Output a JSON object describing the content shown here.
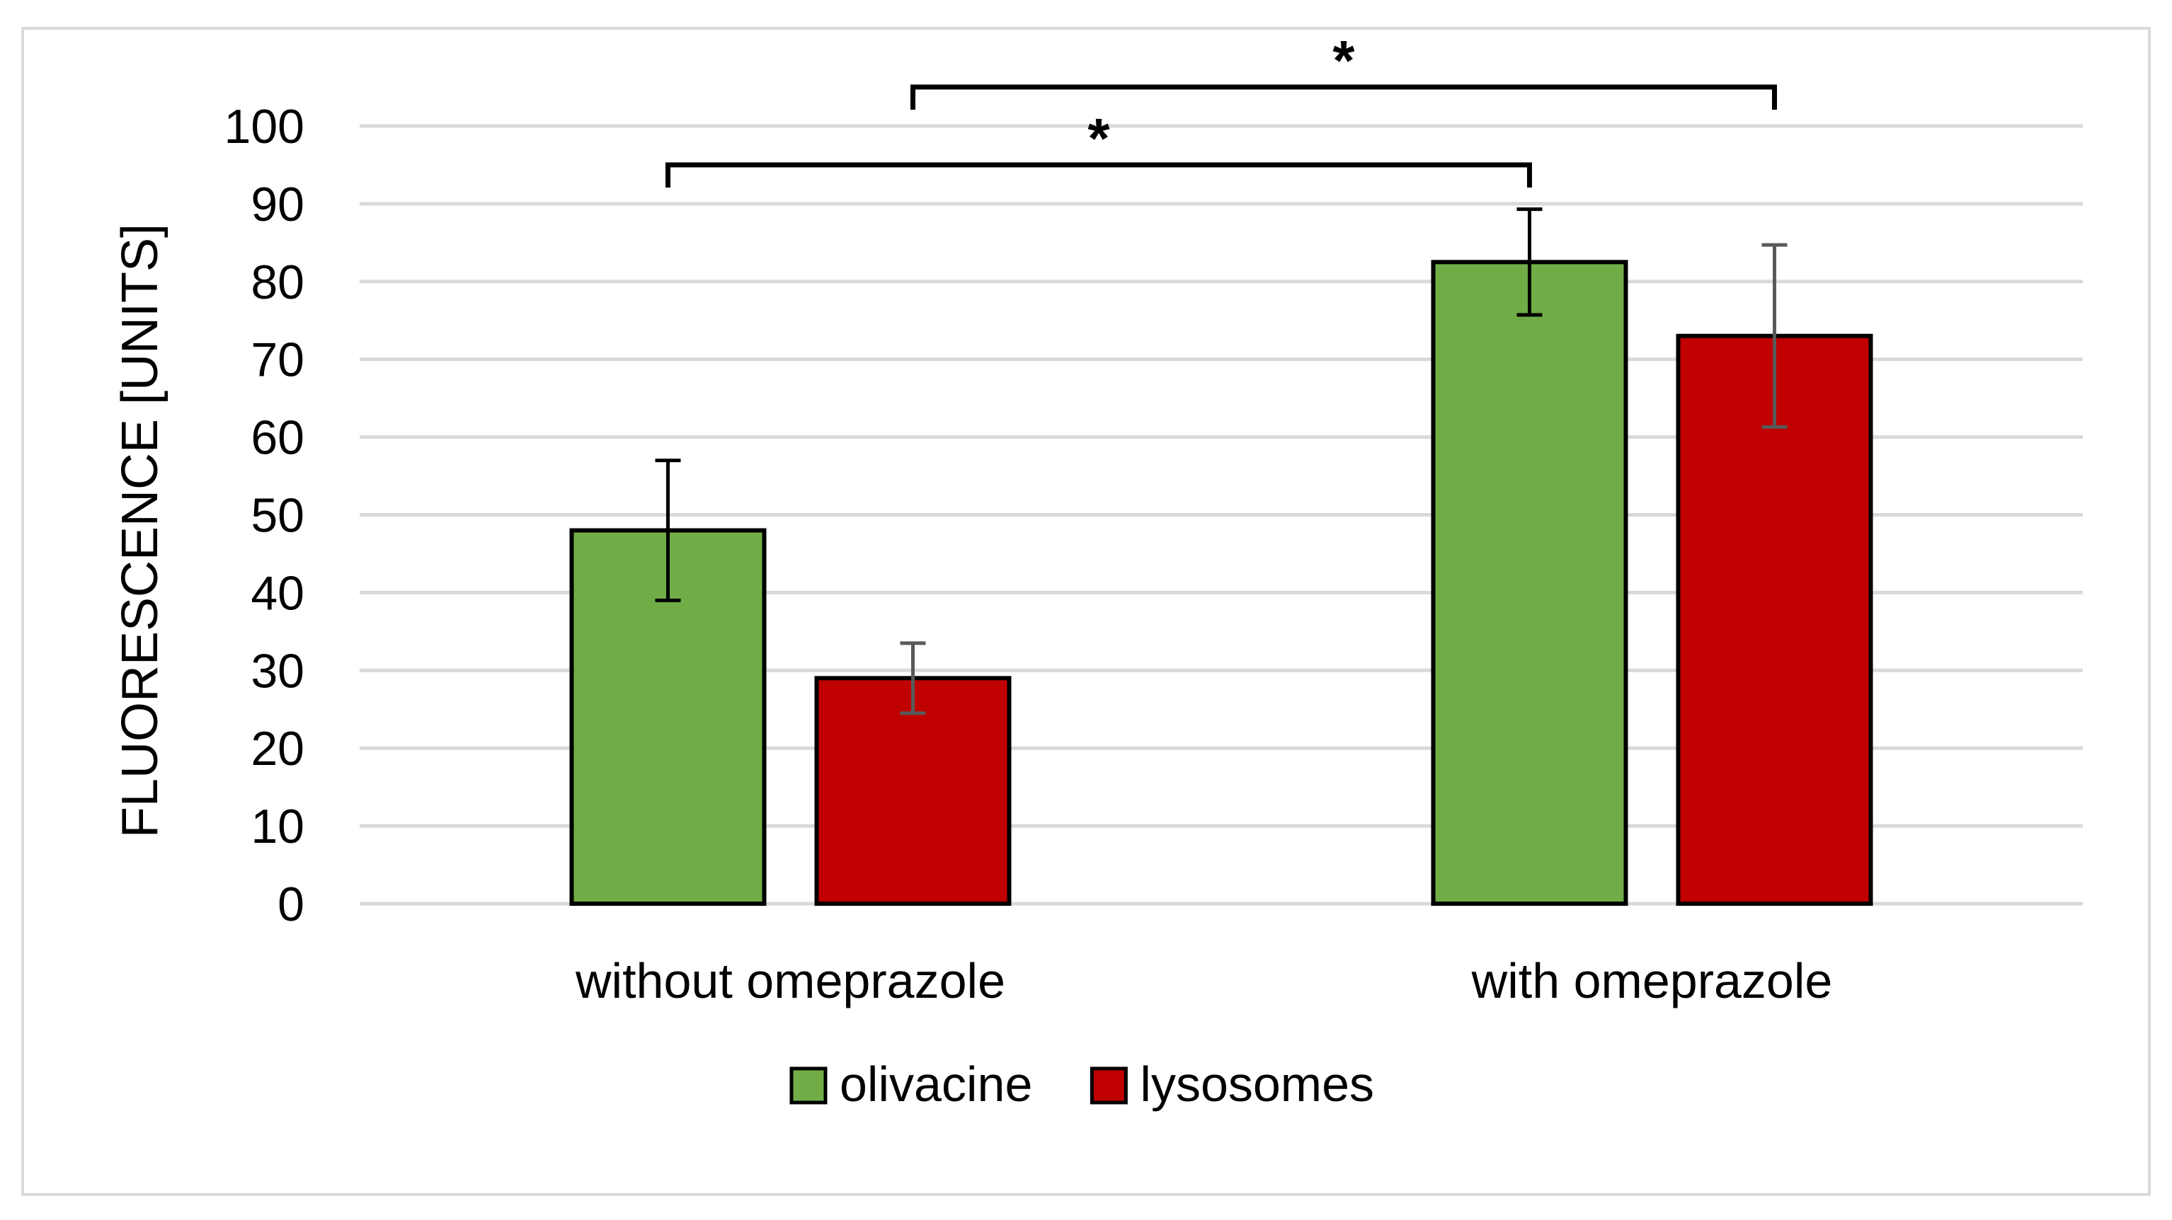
{
  "colors": {
    "olivacine": "#70ad47",
    "lysosomes": "#c00000",
    "grid": "#d9d9d9",
    "frame": "#d9d9d9",
    "text": "#000000",
    "error_bar_olivacine": "#000000",
    "error_bar_lysosomes": "#595959"
  },
  "chart_data": {
    "type": "bar",
    "title": "",
    "xlabel": "",
    "ylabel": "FLUORESCENCE [UNITS]",
    "ylim": [
      0,
      100
    ],
    "yticks": [
      0,
      10,
      20,
      30,
      40,
      50,
      60,
      70,
      80,
      90,
      100
    ],
    "categories": [
      "without omeprazole",
      "with omeprazole"
    ],
    "series": [
      {
        "name": "olivacine",
        "values": [
          48,
          82.5
        ],
        "errors": [
          9,
          6.8
        ]
      },
      {
        "name": "lysosomes",
        "values": [
          29,
          73
        ],
        "errors": [
          4.5,
          11.7
        ]
      }
    ],
    "significance": [
      {
        "label": "*",
        "from": "without omeprazole / olivacine",
        "to": "with omeprazole / olivacine",
        "level": 95
      },
      {
        "label": "*",
        "from": "without omeprazole / lysosomes",
        "to": "with omeprazole / lysosomes",
        "level": 105
      }
    ],
    "legend": {
      "position": "bottom",
      "entries": [
        "olivacine",
        "lysosomes"
      ]
    },
    "grid": true
  }
}
